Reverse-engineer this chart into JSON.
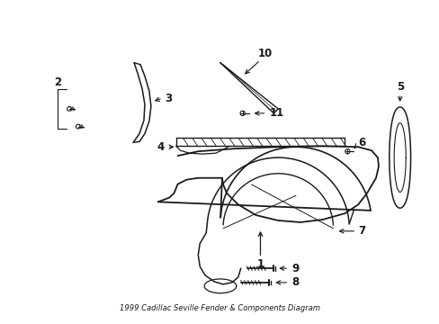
{
  "title": "1999 Cadillac Seville Fender & Components Diagram",
  "background_color": "#ffffff",
  "line_color": "#1a1a1a",
  "figsize": [
    4.89,
    3.6
  ],
  "dpi": 100
}
